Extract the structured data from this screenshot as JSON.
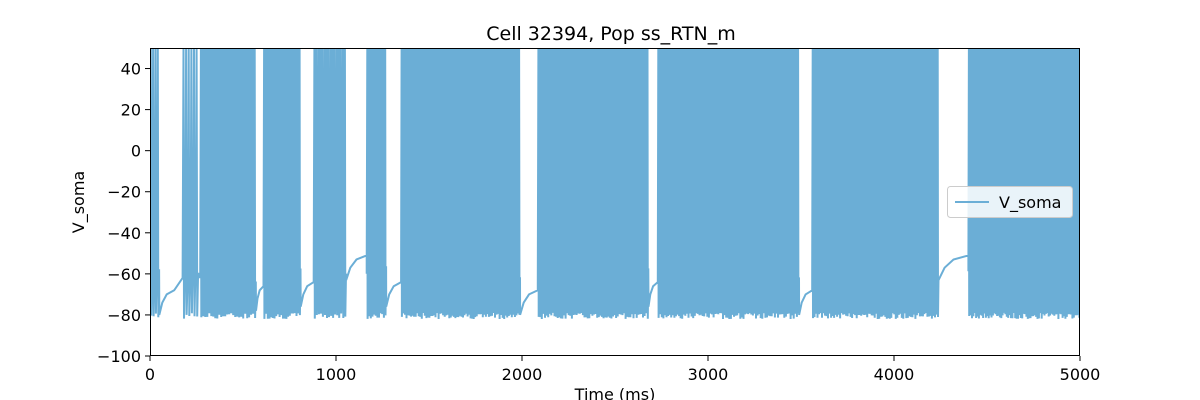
{
  "chart_data": {
    "type": "line",
    "title": "Cell 32394, Pop ss_RTN_m",
    "xlabel": "Time (ms)",
    "ylabel": "V_soma",
    "xlim": [
      0,
      5000
    ],
    "ylim": [
      -100,
      50
    ],
    "x_ticks": [
      "0",
      "1000",
      "2000",
      "3000",
      "4000",
      "5000"
    ],
    "y_ticks": [
      "−100",
      "−80",
      "−60",
      "−40",
      "−20",
      "0",
      "20",
      "40"
    ],
    "grid": false,
    "legend_position": "center-right",
    "series": [
      {
        "name": "V_soma",
        "color": "#6baed6",
        "spike_peak_mV": 50,
        "spike_trough_mV": -82,
        "bursts": [
          {
            "start": 0,
            "end": 50,
            "spikes": 4
          },
          {
            "start": 175,
            "end": 260,
            "spikes": 6
          },
          {
            "start": 270,
            "end": 570,
            "spikes": 28
          },
          {
            "start": 610,
            "end": 810,
            "spikes": 22
          },
          {
            "start": 880,
            "end": 1055,
            "spikes": 16
          },
          {
            "start": 1165,
            "end": 1270,
            "spikes": 12
          },
          {
            "start": 1350,
            "end": 1990,
            "spikes": 78
          },
          {
            "start": 2085,
            "end": 2680,
            "spikes": 70
          },
          {
            "start": 2730,
            "end": 3490,
            "spikes": 90
          },
          {
            "start": 3560,
            "end": 4240,
            "spikes": 84
          },
          {
            "start": 4400,
            "end": 5000,
            "spikes": 80
          }
        ],
        "resting_segments": [
          {
            "start": 50,
            "end": 130,
            "value": -70
          },
          {
            "start": 570,
            "end": 610,
            "value": -68
          },
          {
            "start": 810,
            "end": 880,
            "value": -66
          },
          {
            "start": 1055,
            "end": 1165,
            "value": -53
          },
          {
            "start": 1270,
            "end": 1350,
            "value": -66
          },
          {
            "start": 1990,
            "end": 2085,
            "value": -70
          },
          {
            "start": 2680,
            "end": 2730,
            "value": -66
          },
          {
            "start": 3490,
            "end": 3560,
            "value": -70
          },
          {
            "start": 4240,
            "end": 4400,
            "value": -53
          }
        ]
      }
    ]
  }
}
